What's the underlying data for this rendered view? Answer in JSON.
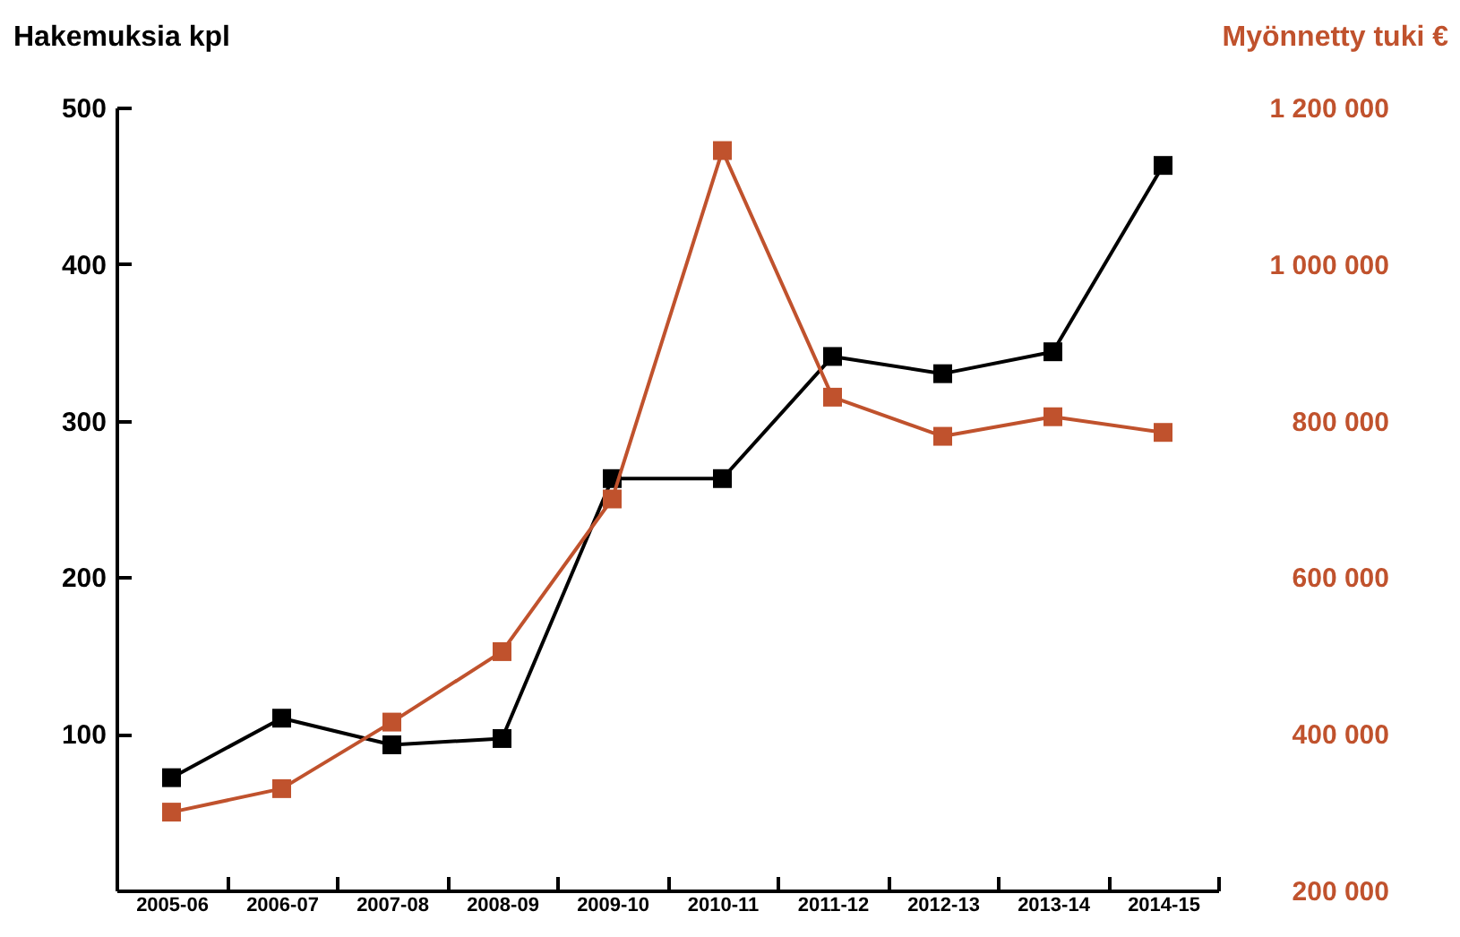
{
  "chart_data": {
    "type": "line",
    "ylabel": "Hakemuksia kpl",
    "y2label": "Myönnetty tuki €",
    "categories": [
      "2005-06",
      "2006-07",
      "2007-08",
      "2008-09",
      "2009-10",
      "2010-11",
      "2011-12",
      "2012-13",
      "2013-14",
      "2014-15"
    ],
    "series": [
      {
        "color": "#000000",
        "values": [
          72,
          110,
          93,
          97,
          263,
          263,
          341,
          330,
          344,
          463
        ]
      },
      {
        "color": "#c0522d",
        "axis": "y2",
        "values": [
          300000,
          330000,
          415000,
          505000,
          700000,
          1145000,
          830000,
          780000,
          805000,
          785000
        ]
      }
    ],
    "ylim": [
      0,
      500
    ],
    "yticks": [
      100,
      200,
      300,
      400,
      500
    ],
    "y2lim": [
      200000,
      1200000
    ],
    "y2ticks": [
      {
        "value": 200000,
        "label": "200 000"
      },
      {
        "value": 400000,
        "label": "400 000"
      },
      {
        "value": 600000,
        "label": "600 000"
      },
      {
        "value": 800000,
        "label": "800 000"
      },
      {
        "value": 1000000,
        "label": "1 000 000"
      },
      {
        "value": 1200000,
        "label": "1 200 000"
      }
    ],
    "marker": "square",
    "grid": false
  }
}
